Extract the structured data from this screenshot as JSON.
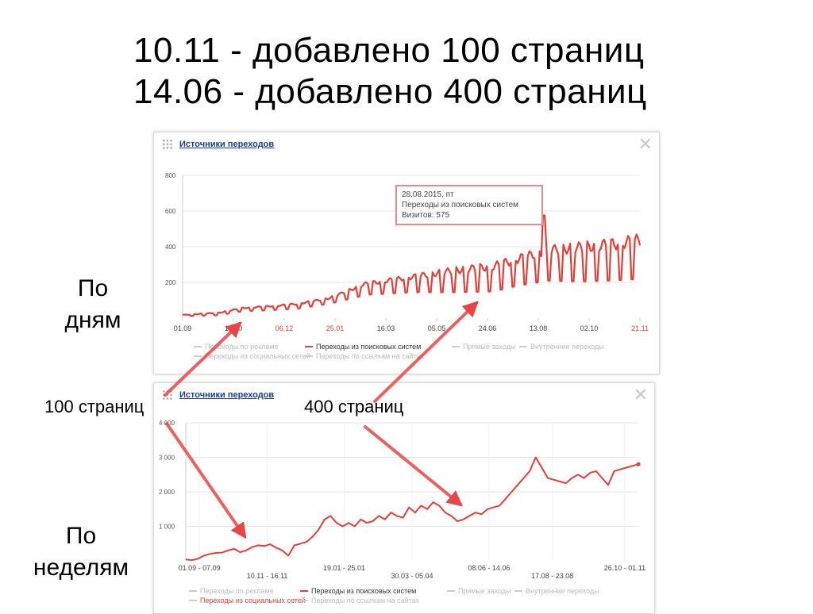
{
  "title": {
    "line1": "10.11 - добавлено 100 страниц",
    "line2": "14.06 - добавлено 400 страниц"
  },
  "labels": {
    "by_days_1": "По",
    "by_days_2": "дням",
    "by_weeks_1": "По",
    "by_weeks_2": "неделям",
    "annot_100": "100 страниц",
    "annot_400": "400 страниц"
  },
  "colors": {
    "series": "#e0403a",
    "arrow": "#e84545",
    "grid": "#e6e6e6",
    "link": "#1a3f8f"
  },
  "panel_top": {
    "header": "Источники переходов",
    "close_icon": "✕",
    "tooltip": {
      "date": "28.08.2015, пт",
      "series": "Переходы из поисковых систем",
      "value": "Визитов: 575"
    },
    "legend": [
      "Переходы по рекламе",
      "Переходы из поисковых систем",
      "Прямые заходы",
      "Внутренние переходы",
      "Переходы из социальных сетей",
      "Переходы по ссылкам на сайтах"
    ]
  },
  "panel_bottom": {
    "header": "Источники переходов",
    "close_icon": "✕",
    "legend": [
      "Переходы по рекламе",
      "Переходы из поисковых систем",
      "Прямые заходы",
      "Внутренние переходы",
      "Переходы из социальных сетей",
      "Переходы по ссылкам на сайтах"
    ]
  },
  "chart_data": [
    {
      "type": "line",
      "title": "Источники переходов",
      "ylim": [
        0,
        800
      ],
      "yticks": [
        "800",
        "600",
        "400",
        "200"
      ],
      "xticks": [
        {
          "label": "01.09",
          "red": false
        },
        {
          "label": "18.10",
          "red": false
        },
        {
          "label": "06.12",
          "red": true
        },
        {
          "label": "25.01",
          "red": true
        },
        {
          "label": "16.03",
          "red": false
        },
        {
          "label": "05.05",
          "red": false
        },
        {
          "label": "24.06",
          "red": false
        },
        {
          "label": "13.08",
          "red": false
        },
        {
          "label": "02.10",
          "red": false
        },
        {
          "label": "21.11",
          "red": true
        }
      ],
      "series": [
        {
          "name": "Переходы из поисковых систем",
          "trend": [
            [
              0,
              15
            ],
            [
              0.08,
              25
            ],
            [
              0.13,
              50
            ],
            [
              0.2,
              60
            ],
            [
              0.25,
              70
            ],
            [
              0.32,
              100
            ],
            [
              0.4,
              170
            ],
            [
              0.5,
              200
            ],
            [
              0.6,
              225
            ],
            [
              0.68,
              240
            ],
            [
              0.72,
              270
            ],
            [
              0.8,
              320
            ],
            [
              0.88,
              330
            ],
            [
              0.95,
              345
            ],
            [
              1.0,
              360
            ]
          ],
          "amplitude": [
            [
              0,
              5
            ],
            [
              0.2,
              15
            ],
            [
              0.32,
              20
            ],
            [
              0.4,
              40
            ],
            [
              0.5,
              55
            ],
            [
              0.6,
              80
            ],
            [
              0.75,
              100
            ],
            [
              0.85,
              120
            ],
            [
              1.0,
              140
            ]
          ],
          "points": 270
        }
      ]
    },
    {
      "type": "line",
      "title": "Источники переходов",
      "ylim": [
        0,
        4000
      ],
      "yticks": [
        "4 000",
        "3 000",
        "2 000",
        "1 000"
      ],
      "xticks": [
        {
          "label": "01.09 - 07.09",
          "row": 0
        },
        {
          "label": "10.11 - 16.11",
          "row": 1
        },
        {
          "label": "19.01 - 25.01",
          "row": 0
        },
        {
          "label": "30.03 - 05.04",
          "row": 1
        },
        {
          "label": "08.06 - 14.06",
          "row": 0
        },
        {
          "label": "17.08 - 23.08",
          "row": 1
        },
        {
          "label": "26.10 - 01.11",
          "row": 0
        }
      ],
      "series": [
        {
          "name": "Переходы из поисковых систем",
          "values": [
            40,
            20,
            60,
            150,
            200,
            230,
            240,
            300,
            350,
            250,
            300,
            400,
            450,
            430,
            480,
            380,
            300,
            150,
            450,
            500,
            550,
            700,
            900,
            1200,
            1300,
            1100,
            1000,
            1100,
            1000,
            1200,
            1100,
            1150,
            1300,
            1200,
            1400,
            1300,
            1250,
            1550,
            1400,
            1600,
            1500,
            1700,
            1600,
            1400,
            1300,
            1150,
            1200,
            1300,
            1400,
            1350,
            1500,
            1550,
            1600,
            1800,
            2000,
            2200,
            2400,
            2600,
            3000,
            2700,
            2400,
            2350,
            2300,
            2250,
            2400,
            2500,
            2400,
            2550,
            2600,
            2400,
            2200,
            2600,
            2650,
            2700,
            2750,
            2800
          ]
        }
      ]
    }
  ]
}
